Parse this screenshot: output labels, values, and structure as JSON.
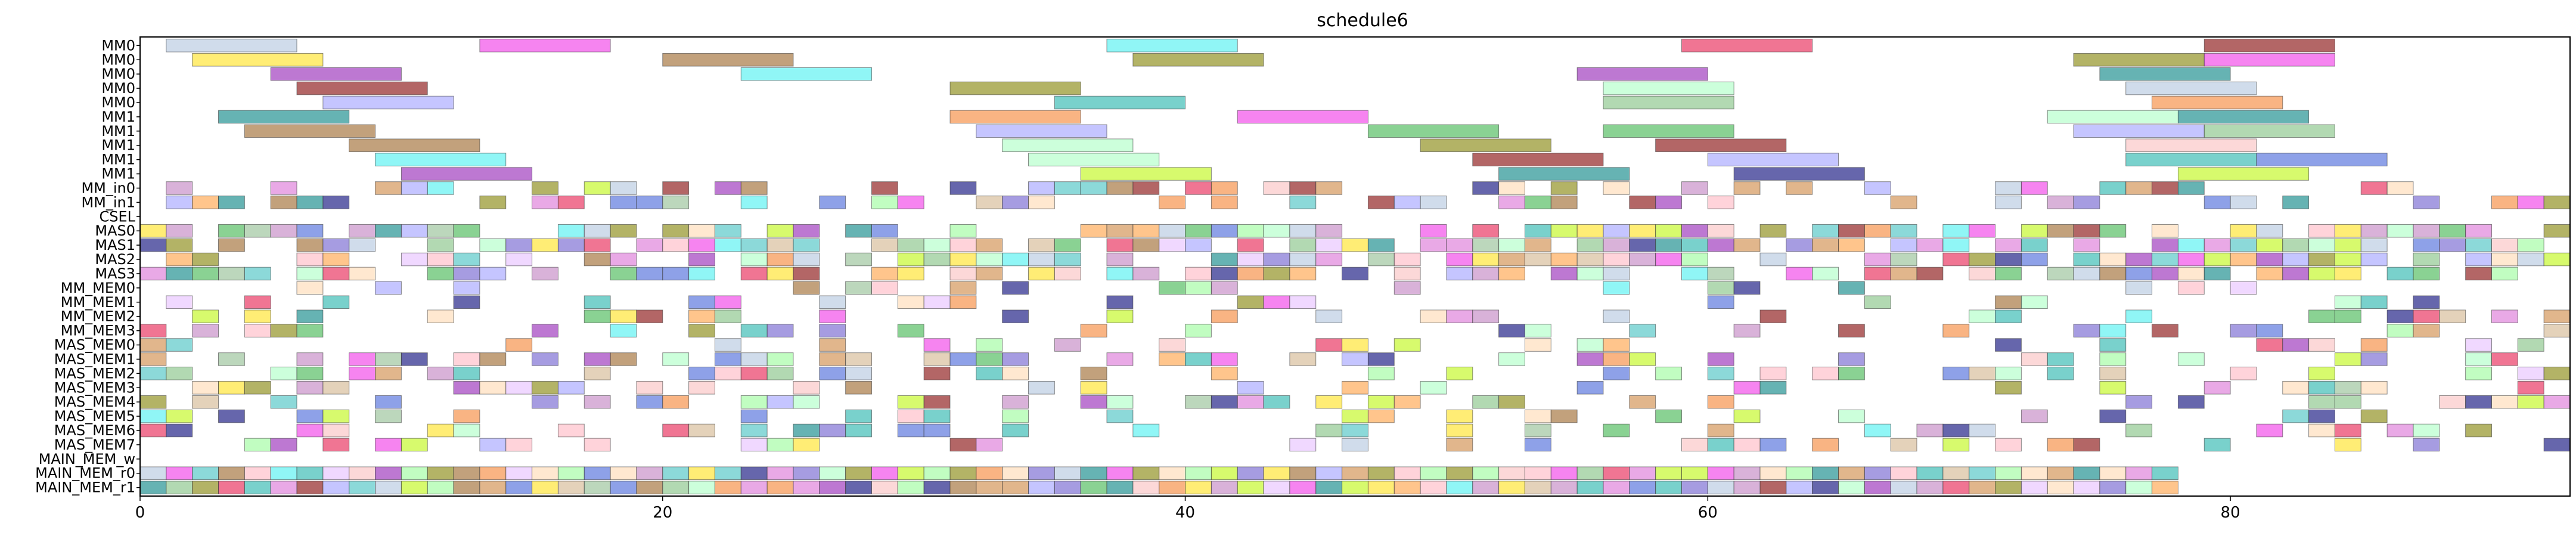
{
  "chart_data": {
    "type": "gantt",
    "title": "schedule6",
    "xlabel": "",
    "ylabel": "",
    "xlim": [
      0,
      93
    ],
    "x_ticks": [
      0,
      20,
      40,
      60,
      80
    ],
    "grid": false,
    "legend": "none",
    "rows": [
      "MM0",
      "MM0",
      "MM0",
      "MM0",
      "MM0",
      "MM1",
      "MM1",
      "MM1",
      "MM1",
      "MM1",
      "MM_in0",
      "MM_in1",
      "CSEL",
      "MAS0",
      "MAS1",
      "MAS2",
      "MAS3",
      "MM_MEM0",
      "MM_MEM1",
      "MM_MEM2",
      "MM_MEM3",
      "MAS_MEM0",
      "MAS_MEM1",
      "MAS_MEM2",
      "MAS_MEM3",
      "MAS_MEM4",
      "MAS_MEM5",
      "MAS_MEM6",
      "MAS_MEM7",
      "MAIN_MEM_w",
      "MAIN_MEM_r0",
      "MAIN_MEM_r1"
    ],
    "bar_height": 0.9,
    "bar_alpha": 0.6,
    "bar_stroke": "#404040",
    "palette": [
      "#e6194b",
      "#3cb44b",
      "#ffe119",
      "#4363d8",
      "#f58231",
      "#911eb4",
      "#46f0f0",
      "#f032e6",
      "#bcf60c",
      "#fabebe",
      "#008080",
      "#e6beff",
      "#9a6324",
      "#800000",
      "#aaffc3",
      "#808000",
      "#ffd8b1",
      "#000075",
      "#9f9fff",
      "#7fbf7f",
      "#bf7fbf",
      "#ff9f40",
      "#40bfbf",
      "#d2b48c",
      "#8fbc8f",
      "#cd853f",
      "#6a5acd",
      "#20b2aa",
      "#da70d6",
      "#b0c4de",
      "#ffb6c1",
      "#98fb98"
    ],
    "rows_spans": [
      [
        [
          1,
          6,
          29
        ],
        [
          13,
          18,
          7
        ],
        [
          37,
          42,
          6
        ],
        [
          59,
          64,
          0
        ],
        [
          79,
          84,
          13
        ]
      ],
      [
        [
          2,
          7,
          2
        ],
        [
          20,
          25,
          12
        ],
        [
          38,
          43,
          15
        ],
        [
          74,
          79,
          15
        ],
        [
          79,
          84,
          7
        ]
      ],
      [
        [
          5,
          10,
          5
        ],
        [
          23,
          28,
          6
        ],
        [
          55,
          60,
          5
        ],
        [
          75,
          80,
          10
        ]
      ],
      [
        [
          6,
          11,
          13
        ],
        [
          31,
          36,
          15
        ],
        [
          56,
          61,
          14
        ],
        [
          76,
          81,
          29
        ]
      ],
      [
        [
          7,
          12,
          18
        ],
        [
          35,
          40,
          27
        ],
        [
          56,
          61,
          19
        ],
        [
          77,
          82,
          4
        ]
      ],
      [
        [
          3,
          8,
          10
        ],
        [
          31,
          36,
          4
        ],
        [
          42,
          47,
          7
        ],
        [
          73,
          78,
          14
        ],
        [
          78,
          83,
          10
        ]
      ],
      [
        [
          4,
          9,
          12
        ],
        [
          32,
          37,
          18
        ],
        [
          47,
          52,
          1
        ],
        [
          56,
          61,
          1
        ],
        [
          74,
          79,
          18
        ],
        [
          79,
          84,
          19
        ]
      ],
      [
        [
          8,
          13,
          12
        ],
        [
          33,
          38,
          14
        ],
        [
          49,
          54,
          15
        ],
        [
          58,
          63,
          13
        ],
        [
          76,
          81,
          9
        ]
      ],
      [
        [
          9,
          14,
          6
        ],
        [
          34,
          39,
          14
        ],
        [
          51,
          56,
          13
        ],
        [
          60,
          65,
          18
        ],
        [
          76,
          81,
          27
        ],
        [
          81,
          86,
          3
        ]
      ],
      [
        [
          10,
          15,
          5
        ],
        [
          36,
          41,
          8
        ],
        [
          52,
          57,
          10
        ],
        [
          61,
          66,
          17
        ],
        [
          78,
          83,
          8
        ]
      ]
    ],
    "data_note": "rows_spans lists, for the first ten rows, each bar as [start, end, palette index]; dense rows are generated deterministically in the render script.",
    "dense_row_count": 22,
    "dense_x_range": [
      0,
      93
    ]
  }
}
